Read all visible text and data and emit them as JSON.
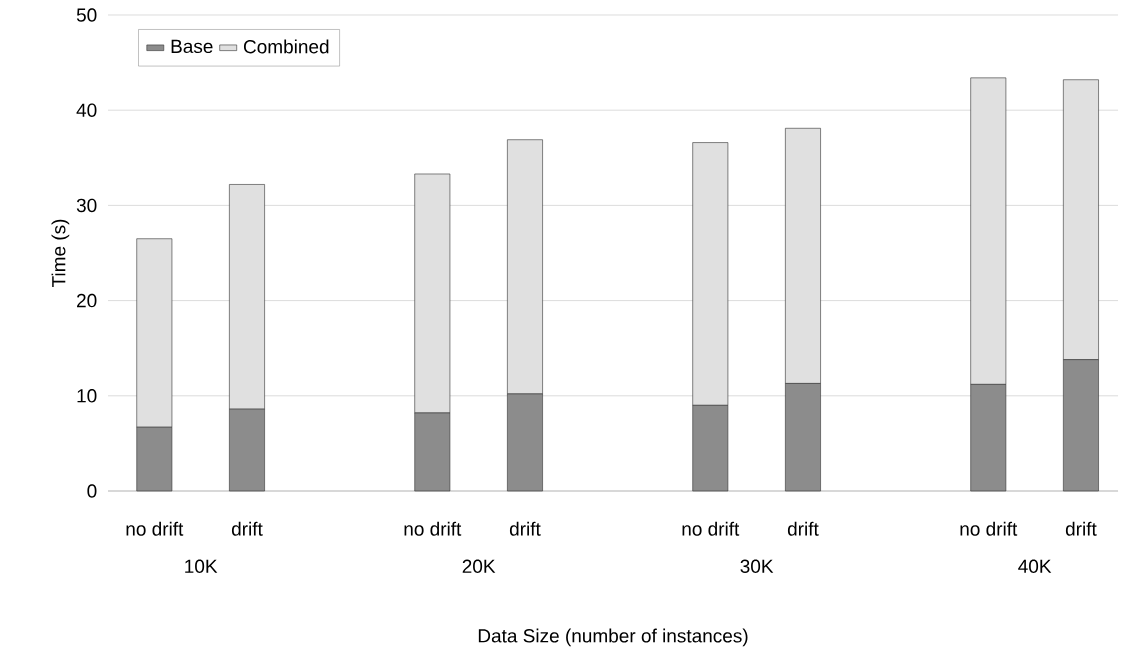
{
  "chart_data": {
    "type": "bar",
    "stacked": true,
    "xlabel": "Data Size (number of instances)",
    "ylabel": "Time (s)",
    "categories": [
      "no drift",
      "drift",
      null,
      "no drift",
      "drift",
      null,
      "no drift",
      "drift",
      null,
      "no drift",
      "drift"
    ],
    "series": [
      {
        "name": "Base",
        "color": "#8c8c8c",
        "values": [
          6.7,
          8.6,
          null,
          8.2,
          10.2,
          null,
          9.0,
          11.3,
          null,
          11.2,
          13.8
        ]
      },
      {
        "name": "Combined",
        "color": "#e0e0e0",
        "values": [
          19.8,
          23.6,
          null,
          25.1,
          26.7,
          null,
          27.6,
          26.8,
          null,
          32.2,
          29.4
        ]
      }
    ],
    "annotations": [
      "10K",
      "20K",
      "30K",
      "40K"
    ],
    "ylim": [
      0,
      50
    ],
    "yticks": [
      0,
      10,
      20,
      30,
      40,
      50
    ],
    "grid": "y",
    "legend": "top left"
  }
}
